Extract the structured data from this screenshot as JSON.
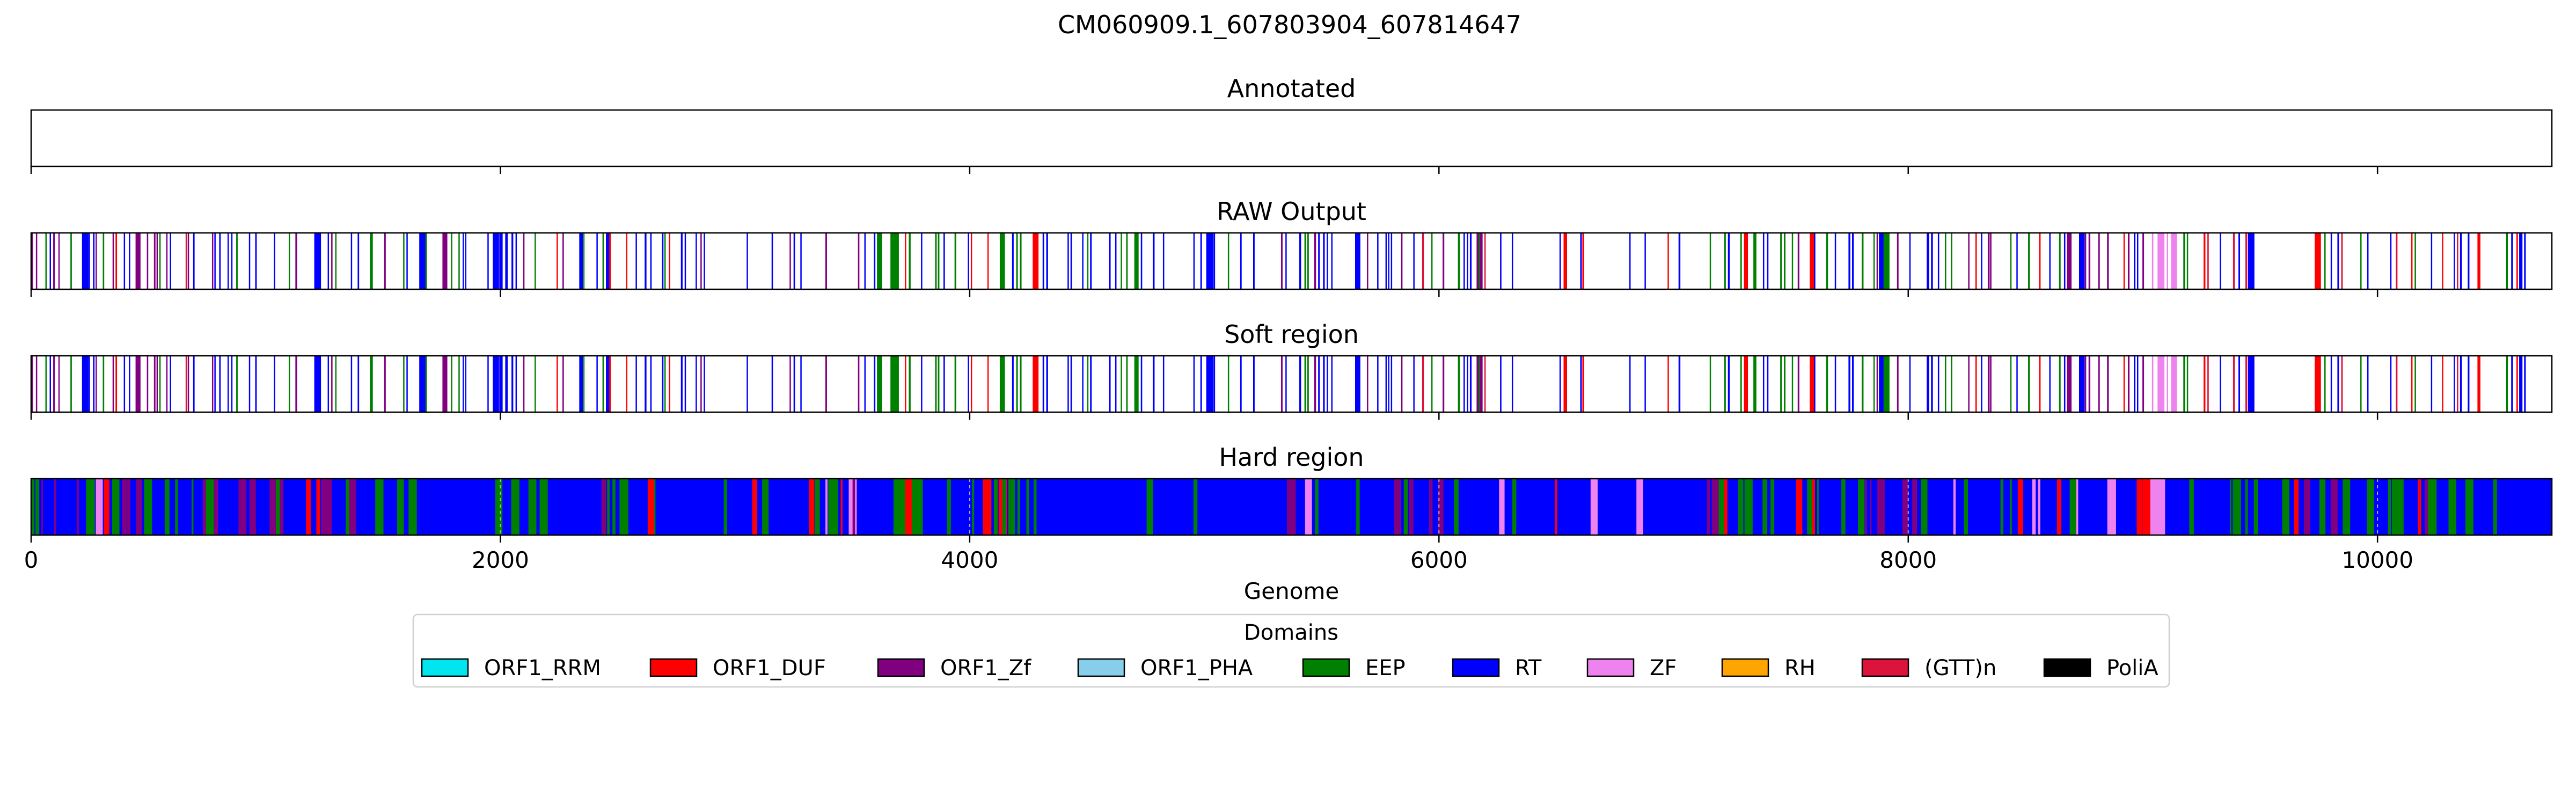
{
  "figure": {
    "title": "CM060909.1_607803904_607814647"
  },
  "chart_data": {
    "type": "track",
    "genome_range": [
      0,
      10743
    ],
    "xlabel": "Genome",
    "xticks": [
      0,
      2000,
      4000,
      6000,
      8000,
      10000
    ],
    "xtick_labels": [
      "0",
      "2000",
      "4000",
      "6000",
      "8000",
      "10000"
    ],
    "panels": [
      {
        "key": "annotated",
        "title": "Annotated",
        "mode": "empty",
        "segments": []
      },
      {
        "key": "raw",
        "title": "RAW Output",
        "mode": "sparse",
        "seed": 11,
        "zones": [
          {
            "start": 0,
            "end": 900,
            "density": 0.75,
            "weights": {
              "RT": 5,
              "ORF1_Zf": 3,
              "EEP": 2,
              "(GTT)n": 1,
              "ORF1_DUF": 1
            }
          },
          {
            "start": 900,
            "end": 1900,
            "density": 0.35,
            "weights": {
              "RT": 4,
              "EEP": 3,
              "ORF1_Zf": 1
            }
          },
          {
            "start": 1900,
            "end": 2900,
            "density": 0.55,
            "weights": {
              "RT": 5,
              "EEP": 2,
              "ORF1_Zf": 1,
              "ORF1_DUF": 1
            }
          },
          {
            "start": 2900,
            "end": 3600,
            "density": 0.25,
            "weights": {
              "RT": 4,
              "ORF1_Zf": 2,
              "EEP": 1
            }
          },
          {
            "start": 3600,
            "end": 4300,
            "density": 0.55,
            "weights": {
              "EEP": 5,
              "RT": 2,
              "ORF1_DUF": 1
            }
          },
          {
            "start": 4300,
            "end": 5300,
            "density": 0.45,
            "weights": {
              "RT": 7,
              "EEP": 1
            }
          },
          {
            "start": 5300,
            "end": 6200,
            "density": 0.6,
            "weights": {
              "RT": 4,
              "ORF1_Zf": 3,
              "EEP": 1,
              "(GTT)n": 1
            }
          },
          {
            "start": 6200,
            "end": 7100,
            "density": 0.25,
            "weights": {
              "RT": 3,
              "EEP": 2,
              "ORF1_DUF": 1
            }
          },
          {
            "start": 7100,
            "end": 8000,
            "density": 0.55,
            "weights": {
              "EEP": 4,
              "RT": 3,
              "ORF1_Zf": 1,
              "ORF1_DUF": 1
            }
          },
          {
            "start": 8000,
            "end": 9000,
            "density": 0.55,
            "weights": {
              "RT": 4,
              "ORF1_Zf": 2,
              "ORF1_DUF": 1,
              "EEP": 2
            }
          },
          {
            "start": 9000,
            "end": 9150,
            "density": 0.55,
            "weights": {
              "ZF": 6
            }
          },
          {
            "start": 9150,
            "end": 10743,
            "density": 0.35,
            "weights": {
              "RT": 5,
              "EEP": 2,
              "ORF1_DUF": 1,
              "(GTT)n": 1
            }
          }
        ]
      },
      {
        "key": "soft",
        "title": "Soft region",
        "mode": "sparse",
        "seed": 11,
        "zones": [
          {
            "start": 0,
            "end": 900,
            "density": 0.75,
            "weights": {
              "RT": 5,
              "ORF1_Zf": 3,
              "EEP": 2,
              "(GTT)n": 1,
              "ORF1_DUF": 1
            }
          },
          {
            "start": 900,
            "end": 1900,
            "density": 0.35,
            "weights": {
              "RT": 4,
              "EEP": 3,
              "ORF1_Zf": 1
            }
          },
          {
            "start": 1900,
            "end": 2900,
            "density": 0.55,
            "weights": {
              "RT": 5,
              "EEP": 2,
              "ORF1_Zf": 1,
              "ORF1_DUF": 1
            }
          },
          {
            "start": 2900,
            "end": 3600,
            "density": 0.25,
            "weights": {
              "RT": 4,
              "ORF1_Zf": 2,
              "EEP": 1
            }
          },
          {
            "start": 3600,
            "end": 4300,
            "density": 0.55,
            "weights": {
              "EEP": 5,
              "RT": 2,
              "ORF1_DUF": 1
            }
          },
          {
            "start": 4300,
            "end": 5300,
            "density": 0.45,
            "weights": {
              "RT": 7,
              "EEP": 1
            }
          },
          {
            "start": 5300,
            "end": 6200,
            "density": 0.6,
            "weights": {
              "RT": 4,
              "ORF1_Zf": 3,
              "EEP": 1,
              "(GTT)n": 1
            }
          },
          {
            "start": 6200,
            "end": 7100,
            "density": 0.25,
            "weights": {
              "RT": 3,
              "EEP": 2,
              "ORF1_DUF": 1
            }
          },
          {
            "start": 7100,
            "end": 8000,
            "density": 0.55,
            "weights": {
              "EEP": 4,
              "RT": 3,
              "ORF1_Zf": 1,
              "ORF1_DUF": 1
            }
          },
          {
            "start": 8000,
            "end": 9000,
            "density": 0.55,
            "weights": {
              "RT": 4,
              "ORF1_Zf": 2,
              "ORF1_DUF": 1,
              "EEP": 2
            }
          },
          {
            "start": 9000,
            "end": 9150,
            "density": 0.55,
            "weights": {
              "ZF": 6
            }
          },
          {
            "start": 9150,
            "end": 10743,
            "density": 0.35,
            "weights": {
              "RT": 5,
              "EEP": 2,
              "ORF1_DUF": 1,
              "(GTT)n": 1
            }
          }
        ]
      },
      {
        "key": "hard",
        "title": "Hard region",
        "mode": "fill",
        "seed": 29,
        "background": "RT",
        "zones": [
          {
            "start": 0,
            "end": 1250,
            "density": 0.55,
            "weights": {
              "EEP": 4,
              "ORF1_Zf": 2,
              "ORF1_DUF": 1,
              "ZF": 1
            }
          },
          {
            "start": 1250,
            "end": 2600,
            "density": 0.3,
            "weights": {
              "EEP": 3,
              "ORF1_Zf": 1
            }
          },
          {
            "start": 2600,
            "end": 3550,
            "density": 0.45,
            "weights": {
              "EEP": 3,
              "ORF1_DUF": 2,
              "ZF": 1,
              "ORF1_Zf": 1
            }
          },
          {
            "start": 3550,
            "end": 4300,
            "density": 0.7,
            "weights": {
              "EEP": 6,
              "ORF1_DUF": 1
            }
          },
          {
            "start": 4300,
            "end": 5300,
            "density": 0.08,
            "weights": {
              "EEP": 2
            }
          },
          {
            "start": 5300,
            "end": 6100,
            "density": 0.45,
            "weights": {
              "EEP": 2,
              "ORF1_Zf": 2,
              "ZF": 1,
              "ORF1_DUF": 1
            }
          },
          {
            "start": 6100,
            "end": 7100,
            "density": 0.2,
            "weights": {
              "ORF1_DUF": 2,
              "EEP": 2,
              "ZF": 1
            }
          },
          {
            "start": 7100,
            "end": 8000,
            "density": 0.6,
            "weights": {
              "EEP": 5,
              "ORF1_DUF": 1,
              "ORF1_Zf": 1
            }
          },
          {
            "start": 8000,
            "end": 9000,
            "density": 0.5,
            "weights": {
              "ORF1_DUF": 2,
              "EEP": 3,
              "ZF": 1,
              "ORF1_Zf": 1
            }
          },
          {
            "start": 9000,
            "end": 9150,
            "density": 0.8,
            "weights": {
              "ZF": 6
            }
          },
          {
            "start": 9150,
            "end": 10500,
            "density": 0.55,
            "weights": {
              "EEP": 5,
              "ORF1_DUF": 1,
              "ORF1_Zf": 1
            }
          },
          {
            "start": 10500,
            "end": 10743,
            "density": 0.15,
            "weights": {
              "EEP": 1
            }
          }
        ]
      }
    ],
    "legend": {
      "title": "Domains",
      "placement": "bottom-center",
      "entries": [
        {
          "label": "ORF1_RRM",
          "color": "#00e5ee"
        },
        {
          "label": "ORF1_DUF",
          "color": "#ff0000"
        },
        {
          "label": "ORF1_Zf",
          "color": "#800080"
        },
        {
          "label": "ORF1_PHA",
          "color": "#87ceeb"
        },
        {
          "label": "EEP",
          "color": "#008000"
        },
        {
          "label": "RT",
          "color": "#0000ff"
        },
        {
          "label": "ZF",
          "color": "#ee82ee"
        },
        {
          "label": "RH",
          "color": "#ffa500"
        },
        {
          "label": "(GTT)n",
          "color": "#dc143c"
        },
        {
          "label": "PoliA",
          "color": "#000000"
        }
      ]
    }
  }
}
